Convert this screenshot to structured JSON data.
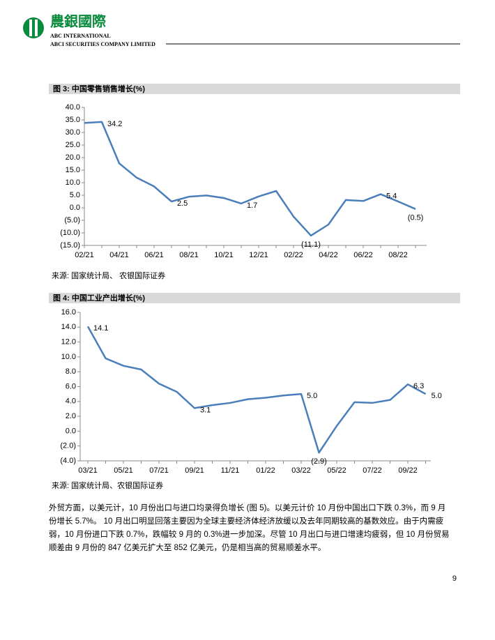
{
  "header": {
    "logo_text": "農銀國際",
    "line1": "ABC INTERNATIONAL",
    "line2": "ABCI SECURITIES COMPANY LIMITED"
  },
  "chart_data": [
    {
      "type": "line",
      "title": "图 3: 中国零售销售增长(%)",
      "source": "来源: 国家统计局、 农银国际证券",
      "categories": [
        "02/21",
        null,
        "04/21",
        null,
        "06/21",
        null,
        "08/21",
        null,
        "10/21",
        null,
        "12/21",
        null,
        "02/22",
        null,
        "04/22",
        null,
        "06/22",
        null,
        "08/22",
        null
      ],
      "series": [
        {
          "name": "中国零售销售增长",
          "color": "#4a7ebb",
          "values": [
            33.8,
            34.2,
            17.7,
            12.0,
            8.5,
            2.5,
            4.4,
            4.9,
            3.9,
            1.7,
            4.5,
            6.7,
            -3.5,
            -11.1,
            -6.7,
            3.1,
            2.7,
            5.4,
            2.5,
            -0.5
          ],
          "value_labels": [
            null,
            "34.2",
            null,
            null,
            null,
            "2.5",
            null,
            null,
            null,
            "1.7",
            null,
            null,
            null,
            "(11.1)",
            null,
            null,
            null,
            "5.4",
            null,
            "(0.5)"
          ]
        }
      ],
      "ylim": [
        -15,
        40
      ],
      "yticks": [
        {
          "value": 40,
          "label": "40.0"
        },
        {
          "value": 35,
          "label": "35.0"
        },
        {
          "value": 30,
          "label": "30.0"
        },
        {
          "value": 25,
          "label": "25.0"
        },
        {
          "value": 20,
          "label": "20.0"
        },
        {
          "value": 15,
          "label": "15.0"
        },
        {
          "value": 10,
          "label": "10.0"
        },
        {
          "value": 5,
          "label": "5.0"
        },
        {
          "value": 0,
          "label": "0.0"
        },
        {
          "value": -5,
          "label": "(5.0)"
        },
        {
          "value": -10,
          "label": "(10.0)"
        },
        {
          "value": -15,
          "label": "(15.0)"
        }
      ]
    },
    {
      "type": "line",
      "title": "图 4: 中国工业产出增长(%)",
      "source": "来源: 国家统计局、农银国际证券",
      "categories": [
        "03/21",
        null,
        "05/21",
        null,
        "07/21",
        null,
        "09/21",
        null,
        "11/21",
        null,
        "01/22",
        null,
        "03/22",
        null,
        "05/22",
        null,
        "07/22",
        null,
        "09/22",
        null
      ],
      "series": [
        {
          "name": "中国工业产出增长",
          "color": "#4a7ebb",
          "values": [
            14.1,
            9.8,
            8.8,
            8.3,
            6.4,
            5.3,
            3.1,
            3.5,
            3.8,
            4.3,
            4.5,
            4.8,
            5.0,
            -2.9,
            0.7,
            3.9,
            3.8,
            4.2,
            6.3,
            5.0
          ],
          "value_labels": [
            "14.1",
            null,
            null,
            null,
            null,
            null,
            "3.1",
            null,
            null,
            null,
            null,
            null,
            "5.0",
            "(2.9)",
            null,
            null,
            null,
            null,
            "6.3",
            "5.0"
          ]
        }
      ],
      "ylim": [
        -4,
        16
      ],
      "yticks": [
        {
          "value": 16,
          "label": "16.0"
        },
        {
          "value": 14,
          "label": "14.0"
        },
        {
          "value": 12,
          "label": "12.0"
        },
        {
          "value": 10,
          "label": "10.0"
        },
        {
          "value": 8,
          "label": "8.0"
        },
        {
          "value": 6,
          "label": "6.0"
        },
        {
          "value": 4,
          "label": "4.0"
        },
        {
          "value": 2,
          "label": "2.0"
        },
        {
          "value": 0,
          "label": "0.0"
        },
        {
          "value": -2,
          "label": "(2.0)"
        },
        {
          "value": -4,
          "label": "(4.0)"
        }
      ]
    }
  ],
  "paragraph": "外贸方面，以美元计，10 月份出口与进口均录得负增长 (图 5)。以美元计价 10 月份中国出口下跌 0.3%，而 9 月份增长 5.7%。 10 月出口明显回落主要因为全球主要经济体经济放缓以及去年同期较高的基数效应。由于内需疲弱，10 月份进口下跌 0.7%，跌幅较 9 月的 0.3%进一步加深。尽管 10 月出口与进口增速均疲弱，但 10 月份贸易顺差由 9 月份的 847 亿美元扩大至 852 亿美元，仍是相当高的贸易顺差水平。",
  "page_number": "9"
}
